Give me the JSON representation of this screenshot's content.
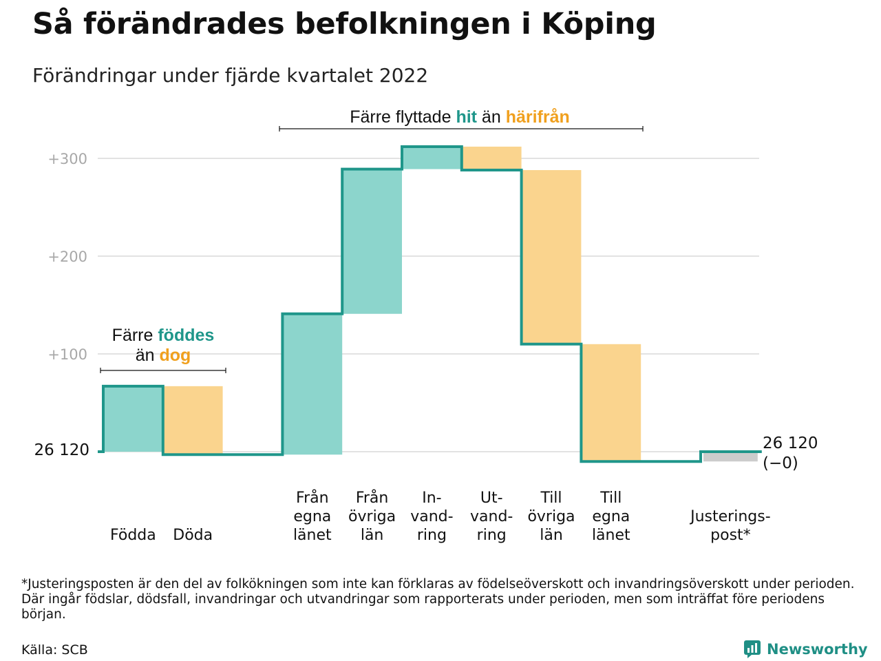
{
  "title": "Så förändrades befolkningen i Köping",
  "subtitle": "Förändringar under fjärde kvartalet 2022",
  "colors": {
    "increase": "#8cd5cc",
    "decrease": "#fad48e",
    "adjustment": "#cccccc",
    "line": "#1f968a",
    "teal_text": "#1f968a",
    "orange_text": "#f0a01e",
    "grid": "#e2e2e2"
  },
  "chart_data": {
    "type": "waterfall",
    "start": {
      "label": "26 120",
      "value": 0
    },
    "end": {
      "label": "26 120",
      "sublabel": "(−0)"
    },
    "ylim": [
      -20,
      330
    ],
    "yticks": [
      {
        "value": 100,
        "label": "+100"
      },
      {
        "value": 200,
        "label": "+200"
      },
      {
        "value": 300,
        "label": "+300"
      }
    ],
    "steps": [
      {
        "label_lines": [
          "Födda"
        ],
        "change": 67,
        "kind": "increase"
      },
      {
        "label_lines": [
          "Döda"
        ],
        "change": -70,
        "kind": "decrease"
      },
      {
        "label_lines": [],
        "change": 0,
        "kind": "none"
      },
      {
        "label_lines": [
          "Från",
          "egna",
          "länet"
        ],
        "change": 144,
        "kind": "increase"
      },
      {
        "label_lines": [
          "Från",
          "övriga",
          "län"
        ],
        "change": 148,
        "kind": "increase"
      },
      {
        "label_lines": [
          "In-",
          "vand-",
          "ring"
        ],
        "change": 23,
        "kind": "increase"
      },
      {
        "label_lines": [
          "Ut-",
          "vand-",
          "ring"
        ],
        "change": -24,
        "kind": "decrease"
      },
      {
        "label_lines": [
          "Till",
          "övriga",
          "län"
        ],
        "change": -178,
        "kind": "decrease"
      },
      {
        "label_lines": [
          "Till",
          "egna",
          "länet"
        ],
        "change": -120,
        "kind": "decrease"
      },
      {
        "label_lines": [],
        "change": 0,
        "kind": "none"
      },
      {
        "label_lines": [
          "Justerings-",
          "post*"
        ],
        "change": 10,
        "kind": "adjustment"
      }
    ],
    "annotations": [
      {
        "parts": [
          {
            "text": "Färre ",
            "style": "normal"
          },
          {
            "text": "föddes",
            "style": "teal"
          }
        ],
        "parts2": [
          {
            "text": "än ",
            "style": "normal"
          },
          {
            "text": "dog",
            "style": "orange"
          }
        ]
      },
      {
        "parts": [
          {
            "text": "Färre flyttade ",
            "style": "normal"
          },
          {
            "text": "hit",
            "style": "teal"
          },
          {
            "text": " än ",
            "style": "normal"
          },
          {
            "text": "härifrån",
            "style": "orange"
          }
        ]
      }
    ]
  },
  "footnote": "*Justeringsposten är den del av folkökningen som inte kan förklaras av födelseöverskott och invandringsöverskott under perioden. Där ingår födslar, dödsfall, invandringar och utvandringar som rapporterats under perioden, men som inträffat före periodens början.",
  "source": "Källa: SCB",
  "brand": {
    "name": "Newsworthy",
    "icon": "newsworthy-logo-icon"
  }
}
